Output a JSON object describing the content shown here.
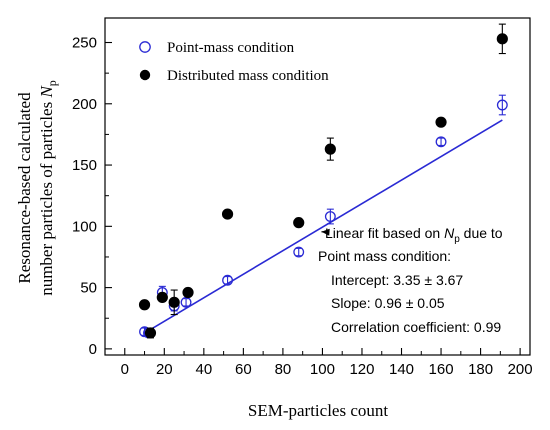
{
  "chart_data": {
    "type": "scatter",
    "xlabel": "SEM-particles count",
    "ylabel_line1": "Resonance-based calculated",
    "ylabel_line2_prefix": "number particles of particles ",
    "ylabel_symbol": "N",
    "ylabel_subscript": "p",
    "xlim": [
      -10,
      205
    ],
    "ylim": [
      -5,
      270
    ],
    "xticks": [
      0,
      20,
      40,
      60,
      80,
      100,
      120,
      140,
      160,
      180,
      200
    ],
    "yticks": [
      0,
      50,
      100,
      150,
      200,
      250
    ],
    "grid": false,
    "legend_position": "top-left",
    "series": [
      {
        "name": "Point-mass condition",
        "marker": "open-circle",
        "color": "#2a2ad4",
        "points": [
          {
            "x": 10,
            "y": 14,
            "err": 3
          },
          {
            "x": 12,
            "y": 13,
            "err": 3
          },
          {
            "x": 19,
            "y": 46,
            "err": 5
          },
          {
            "x": 25,
            "y": 35,
            "err": 4
          },
          {
            "x": 31,
            "y": 38,
            "err": 3
          },
          {
            "x": 52,
            "y": 56,
            "err": 3
          },
          {
            "x": 88,
            "y": 79,
            "err": 3
          },
          {
            "x": 104,
            "y": 108,
            "err": 6
          },
          {
            "x": 160,
            "y": 169,
            "err": 3
          },
          {
            "x": 191,
            "y": 199,
            "err": 8
          }
        ]
      },
      {
        "name": "Distributed mass condition",
        "marker": "filled-circle",
        "color": "#000000",
        "points": [
          {
            "x": 10,
            "y": 36,
            "err": 0
          },
          {
            "x": 13,
            "y": 13,
            "err": 4
          },
          {
            "x": 19,
            "y": 42,
            "err": 3
          },
          {
            "x": 25,
            "y": 38,
            "err": 10
          },
          {
            "x": 32,
            "y": 46,
            "err": 0
          },
          {
            "x": 52,
            "y": 110,
            "err": 0
          },
          {
            "x": 88,
            "y": 103,
            "err": 0
          },
          {
            "x": 104,
            "y": 163,
            "err": 9
          },
          {
            "x": 160,
            "y": 185,
            "err": 0
          },
          {
            "x": 191,
            "y": 253,
            "err": 12
          }
        ]
      }
    ],
    "fit_line": {
      "x_start": 10,
      "x_end": 191,
      "intercept": 3.35,
      "slope": 0.96,
      "color": "#2a2ad4"
    },
    "annotation": {
      "arrow_target": {
        "x": 98,
        "y": 98
      },
      "line1_prefix": "Linear fit based on ",
      "line1_symbol": "N",
      "line1_subscript": "p",
      "line1_suffix": " due to",
      "line2": "Point mass condition:",
      "line3": "Intercept: 3.35 ± 3.67",
      "line4": "Slope: 0.96 ± 0.05",
      "line5": "Correlation coefficient: 0.99"
    }
  }
}
